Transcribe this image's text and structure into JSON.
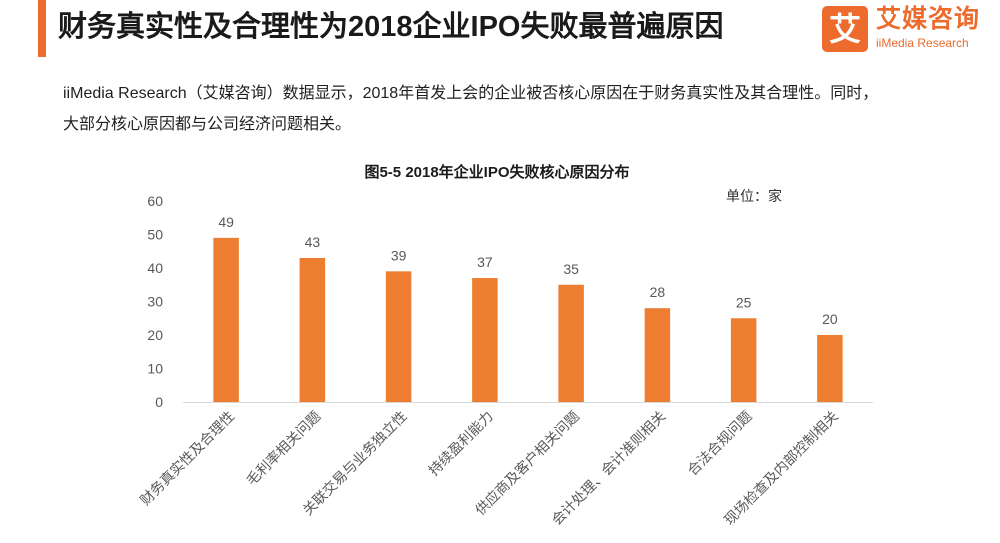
{
  "header": {
    "title": "财务真实性及合理性为2018企业IPO失败最普遍原因",
    "accent_color": "#EC6B2D"
  },
  "logo": {
    "icon_char": "艾",
    "name": "艾媒咨询",
    "subtitle": "iiMedia Research",
    "color": "#EC6B2D"
  },
  "intro": {
    "lines": [
      "iiMedia Research（艾媒咨询）数据显示，2018年首发上会的企业被否核心原因在于财务真实性及其合理性。同时，",
      "大部分核心原因都与公司经济问题相关。"
    ]
  },
  "chart_data": {
    "type": "bar",
    "title": "图5-5 2018年企业IPO失败核心原因分布",
    "unit_label": "单位：家",
    "categories": [
      "财务真实性及合理性",
      "毛利率相关问题",
      "关联交易与业务独立性",
      "持续盈利能力",
      "供应商及客户相关问题",
      "会计处理、会计准则相关",
      "合法合规问题",
      "现场检查及内部控制相关"
    ],
    "values": [
      49,
      43,
      39,
      37,
      35,
      28,
      25,
      20
    ],
    "ylim": [
      0,
      60
    ],
    "yticks": [
      0,
      10,
      20,
      30,
      40,
      50,
      60
    ],
    "bar_color": "#ED7D31",
    "data_labels": true,
    "grid": false
  }
}
